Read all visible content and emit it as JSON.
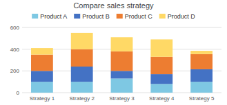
{
  "chart_data": {
    "type": "bar",
    "title": "Compare sales strategy",
    "categories": [
      "Strategy 1",
      "Strategy 2",
      "Strategy 3",
      "Strategy 4",
      "Strategy 5"
    ],
    "series": [
      {
        "name": "Product A",
        "color": "#7ec8e3",
        "values": [
          100,
          100,
          130,
          80,
          100
        ]
      },
      {
        "name": "Product B",
        "color": "#4472c4",
        "values": [
          100,
          140,
          70,
          90,
          115
        ]
      },
      {
        "name": "Product C",
        "color": "#ed7d31",
        "values": [
          150,
          160,
          180,
          160,
          140
        ]
      },
      {
        "name": "Product D",
        "color": "#ffd966",
        "values": [
          60,
          150,
          130,
          160,
          30
        ]
      }
    ],
    "stacked": true,
    "ylim": [
      0,
      600
    ],
    "yticks": [
      0,
      200,
      400,
      600
    ],
    "grid": true,
    "legend": "top"
  }
}
